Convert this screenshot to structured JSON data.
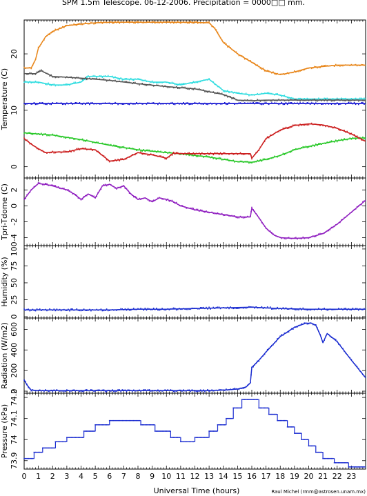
{
  "chart_data": {
    "type": "line",
    "title": "SPM 1.5m Telescope. 06-12-2006. Precipitation = 0000□□ mm.",
    "xlabel": "Universal Time (hours)",
    "credit": "Raul Michel (rmm@astrosen.unam.mx)",
    "xlim": [
      0,
      24
    ],
    "xticks": [
      0,
      1,
      2,
      3,
      4,
      5,
      6,
      7,
      8,
      9,
      10,
      11,
      12,
      13,
      14,
      15,
      16,
      17,
      18,
      19,
      20,
      21,
      22,
      23
    ],
    "panels": [
      {
        "ylabel": "Temperature (C)",
        "ylim": [
          -2,
          26
        ],
        "yticks": [
          0,
          10,
          20
        ],
        "series": [
          {
            "color": "#e8861a",
            "x": [
              0,
              0.5,
              0.8,
              1.0,
              1.5,
              2,
              3,
              4,
              5,
              6,
              8,
              10,
              12,
              13,
              13.4,
              14,
              15,
              16,
              17,
              18,
              19,
              20,
              22,
              24
            ],
            "y": [
              17.5,
              17.5,
              19,
              21,
              23,
              24,
              25,
              25.3,
              25.5,
              25.6,
              25.6,
              25.6,
              25.6,
              25.5,
              24.5,
              22,
              20,
              18.5,
              17,
              16.3,
              16.8,
              17.5,
              18,
              18
            ]
          },
          {
            "color": "#30dde0",
            "x": [
              0,
              1,
              2,
              3,
              4,
              4.5,
              5,
              6,
              7,
              8,
              9,
              10,
              11,
              12,
              13,
              14,
              15,
              16,
              17,
              18,
              19,
              24
            ],
            "y": [
              15,
              15,
              14.5,
              14.5,
              15,
              16,
              16,
              16,
              15.5,
              15.5,
              15,
              15,
              14.5,
              15,
              15.5,
              13.5,
              13,
              12.7,
              13,
              12.7,
              12,
              12
            ]
          },
          {
            "color": "#555555",
            "x": [
              0,
              0.8,
              1.2,
              2,
              4,
              6,
              8,
              10,
              12,
              13,
              14,
              15,
              16,
              17,
              18,
              19,
              24
            ],
            "y": [
              16.5,
              16.5,
              17,
              16,
              15.7,
              15.3,
              14.7,
              14.2,
              13.8,
              13.3,
              12.8,
              11.8,
              11.7,
              11.8,
              11.8,
              11.8,
              11.8
            ]
          },
          {
            "color": "#1010d0",
            "x": [
              0,
              24
            ],
            "y": [
              11.2,
              11.2
            ]
          },
          {
            "color": "#28c828",
            "x": [
              0,
              2,
              4,
              6,
              8,
              10,
              11,
              12,
              13,
              14,
              15,
              16,
              17,
              18,
              19,
              20,
              21,
              22,
              23,
              24
            ],
            "y": [
              6,
              5.6,
              4.8,
              3.8,
              3,
              2.5,
              2.3,
              2,
              1.7,
              1.3,
              0.9,
              0.8,
              1.3,
              2,
              3,
              3.6,
              4.1,
              4.6,
              5,
              5.1
            ]
          },
          {
            "color": "#cc2020",
            "x": [
              0,
              0.5,
              1.0,
              1.5,
              2,
              3,
              4,
              5,
              6,
              7,
              8,
              9,
              10,
              10.5,
              11,
              12,
              14,
              15,
              15.9,
              16,
              16.5,
              17,
              18,
              19,
              20,
              21,
              22,
              23,
              24
            ],
            "y": [
              5,
              4,
              3.2,
              2.5,
              2.6,
              2.6,
              3.2,
              3,
              1,
              1.3,
              2.5,
              2.1,
              1.5,
              2.4,
              2.3,
              2.3,
              2.3,
              2.3,
              2.3,
              1.5,
              3,
              5,
              6.5,
              7.3,
              7.6,
              7.4,
              6.8,
              5.8,
              4.5
            ]
          }
        ]
      },
      {
        "ylabel": "Tpri-Tdome (C)",
        "ylim": [
          -5,
          3.5
        ],
        "yticks": [
          -4,
          -2,
          0,
          2
        ],
        "series": [
          {
            "color": "#9020c0",
            "x": [
              0,
              0.5,
              1,
              1.5,
              2,
              3,
              3.5,
              4,
              4.5,
              5,
              5.5,
              6,
              6.5,
              7,
              7.5,
              8,
              8.5,
              9,
              9.5,
              10,
              10.5,
              11,
              12,
              13,
              14,
              15,
              15.9,
              16,
              16.5,
              17,
              17.5,
              18,
              19,
              20,
              21,
              22,
              23,
              24
            ],
            "y": [
              0.8,
              2,
              2.8,
              2.7,
              2.5,
              2,
              1.5,
              0.8,
              1.5,
              1,
              2.5,
              2.7,
              2.2,
              2.5,
              1.5,
              0.8,
              1,
              0.5,
              1,
              0.8,
              0.5,
              0,
              -0.5,
              -0.8,
              -1.1,
              -1.4,
              -1.4,
              -0.3,
              -1.5,
              -2.8,
              -3.6,
              -4,
              -4.1,
              -4,
              -3.5,
              -2.3,
              -0.8,
              0.7
            ]
          }
        ]
      },
      {
        "ylabel": "Humidity (%)",
        "ylim": [
          -2,
          105
        ],
        "yticks": [
          0,
          25,
          50,
          75,
          100
        ],
        "series": [
          {
            "color": "#1a2cd0",
            "x": [
              0,
              2,
              4,
              6,
              8,
              10,
              12,
              14,
              16,
              18,
              20,
              22,
              24
            ],
            "y": [
              10,
              10,
              10,
              10,
              11,
              11,
              12,
              13,
              14,
              12,
              11,
              11,
              11
            ]
          }
        ]
      },
      {
        "ylabel": "Radiation (W/m2)",
        "ylim": [
          -20,
          710
        ],
        "yticks": [
          0,
          200,
          400,
          600
        ],
        "series": [
          {
            "color": "#1a2cd0",
            "x": [
              0,
              0.2,
              0.5,
              1,
              2,
              5,
              10,
              13,
              14,
              15,
              15.6,
              15.9,
              16,
              16.5,
              17,
              18,
              19,
              19.8,
              20.2,
              20.5,
              20.8,
              21,
              21.3,
              22,
              23,
              24
            ],
            "y": [
              110,
              60,
              10,
              5,
              5,
              5,
              5,
              5,
              10,
              20,
              40,
              80,
              230,
              300,
              380,
              530,
              620,
              660,
              660,
              640,
              550,
              470,
              560,
              480,
              300,
              130
            ]
          }
        ]
      },
      {
        "ylabel": "Pressure (kPa)",
        "ylim": [
          73.86,
          74.22
        ],
        "yticks": [
          73.9,
          74,
          74.1,
          74.2
        ],
        "series": [
          {
            "color": "#1a2cd0",
            "step": true,
            "x": [
              0,
              0.7,
              1.3,
              2.2,
              3.0,
              4.2,
              5.0,
              6.0,
              8.2,
              9.2,
              10.3,
              11.0,
              12.0,
              13.0,
              13.6,
              14.2,
              14.7,
              15.3,
              16.5,
              17.2,
              17.8,
              18.5,
              19.0,
              19.5,
              20.0,
              20.5,
              21.0,
              21.8,
              22.8,
              24
            ],
            "y": [
              73.91,
              73.94,
              73.96,
              73.99,
              74.01,
              74.04,
              74.07,
              74.09,
              74.07,
              74.04,
              74.01,
              73.99,
              74.01,
              74.04,
              74.07,
              74.1,
              74.15,
              74.19,
              74.15,
              74.12,
              74.09,
              74.06,
              74.03,
              74.0,
              73.97,
              73.94,
              73.91,
              73.89,
              73.87,
              73.87
            ]
          }
        ]
      }
    ]
  }
}
